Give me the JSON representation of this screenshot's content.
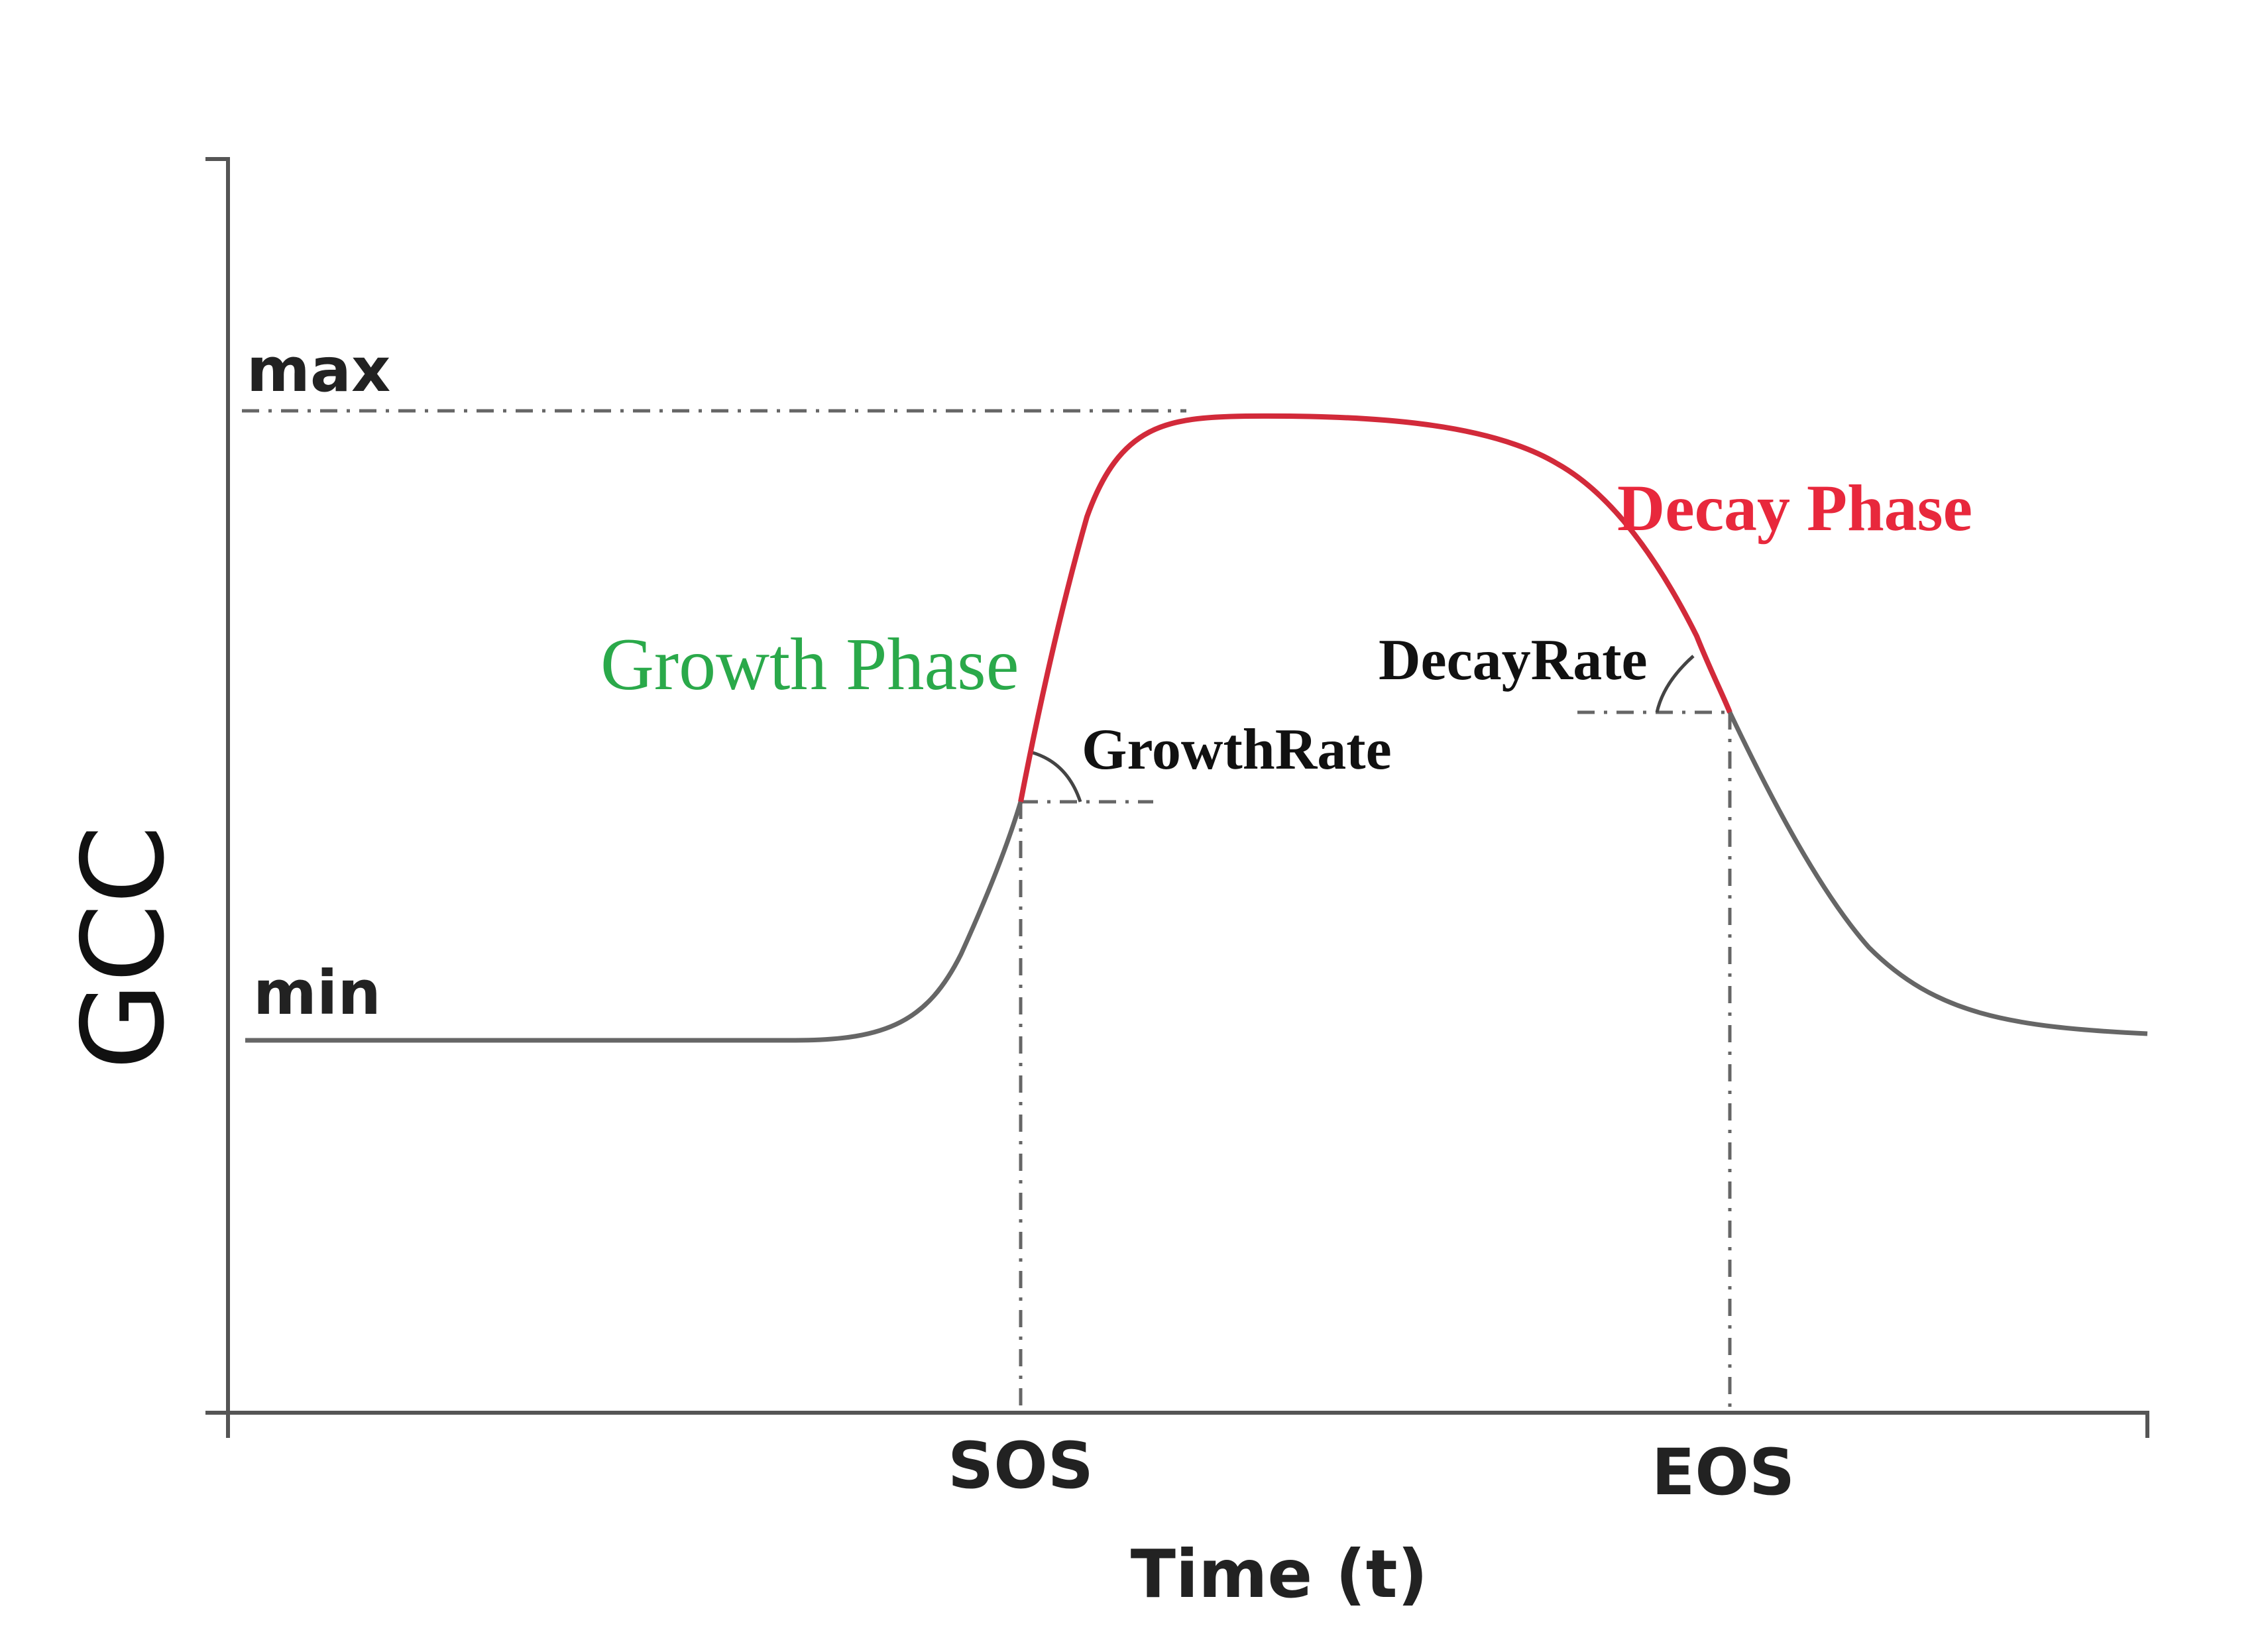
{
  "diagram": {
    "y_axis_label": "GCC",
    "x_axis_label": "Time (t)",
    "levels": {
      "max_label": "max",
      "min_label": "min"
    },
    "markers": {
      "sos_label": "SOS",
      "eos_label": "EOS"
    },
    "phases": {
      "growth_label": "Growth Phase",
      "decay_label": "Decay Phase"
    },
    "rates": {
      "growth_rate_label": "GrowthRate",
      "decay_rate_label": "DecayRate"
    },
    "colors": {
      "axis": "#555555",
      "curve": "#666666",
      "curve_highlight": "#d22a3a",
      "growth_text": "#2aa94a",
      "decay_text": "#e8283c",
      "dashed": "#666666",
      "text": "#111111"
    }
  }
}
